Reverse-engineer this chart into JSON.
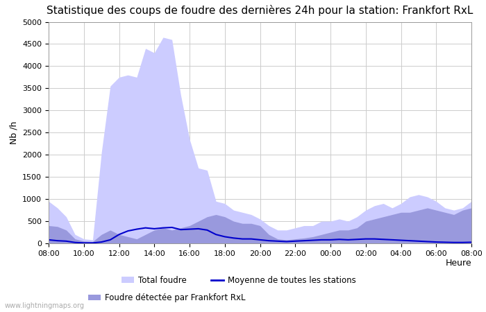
{
  "title": "Statistique des coups de foudre des dernières 24h pour la station: Frankfort RxL",
  "ylabel": "Nb /h",
  "xlabel": "Heure",
  "watermark": "www.lightningmaps.org",
  "ylim": [
    0,
    5000
  ],
  "yticks": [
    0,
    500,
    1000,
    1500,
    2000,
    2500,
    3000,
    3500,
    4000,
    4500,
    5000
  ],
  "x_labels": [
    "08:00",
    "10:00",
    "12:00",
    "14:00",
    "16:00",
    "18:00",
    "20:00",
    "22:00",
    "00:00",
    "02:00",
    "04:00",
    "06:00",
    "08:00"
  ],
  "total_foudre_color": "#ccccff",
  "frankfort_color": "#9999dd",
  "moyenne_color": "#0000cc",
  "background_color": "#ffffff",
  "grid_color": "#cccccc",
  "total_foudre": [
    950,
    800,
    600,
    200,
    100,
    80,
    2050,
    3550,
    3750,
    3800,
    3750,
    4400,
    4300,
    4650,
    4600,
    3350,
    2350,
    1700,
    1650,
    950,
    900,
    750,
    700,
    650,
    550,
    400,
    300,
    300,
    350,
    400,
    400,
    500,
    500,
    550,
    500,
    600,
    750,
    850,
    900,
    800,
    900,
    1050,
    1100,
    1050,
    950,
    800,
    750,
    800,
    950
  ],
  "frankfort_foudre": [
    400,
    380,
    300,
    100,
    50,
    40,
    200,
    300,
    200,
    150,
    100,
    200,
    300,
    350,
    300,
    350,
    400,
    500,
    600,
    650,
    600,
    500,
    450,
    450,
    400,
    200,
    100,
    80,
    100,
    120,
    150,
    200,
    250,
    300,
    300,
    350,
    500,
    550,
    600,
    650,
    700,
    700,
    750,
    800,
    750,
    700,
    650,
    750,
    800
  ],
  "moyenne": [
    80,
    60,
    50,
    20,
    10,
    10,
    30,
    80,
    200,
    280,
    320,
    350,
    330,
    350,
    360,
    310,
    320,
    330,
    300,
    200,
    150,
    120,
    100,
    100,
    80,
    60,
    50,
    40,
    50,
    60,
    70,
    80,
    80,
    90,
    80,
    90,
    100,
    100,
    90,
    80,
    70,
    60,
    50,
    40,
    30,
    25,
    20,
    20,
    25
  ],
  "n_points": 49,
  "title_fontsize": 11,
  "label_fontsize": 9,
  "tick_fontsize": 8
}
